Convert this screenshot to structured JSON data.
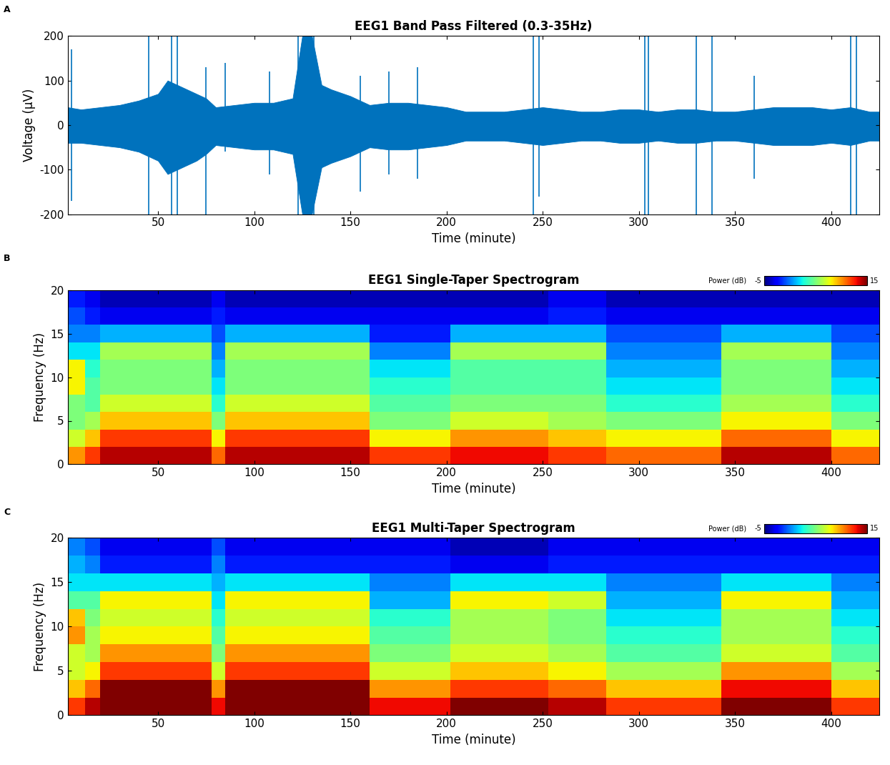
{
  "chart_data": [
    {
      "type": "area",
      "panel_label": "A",
      "title": "EEG1 Band Pass Filtered (0.3-35Hz)",
      "x_label": "Time (minute)",
      "y_label": "Voltage (µV)",
      "color": "#0072bd",
      "grid": false,
      "xlim": [
        3,
        425
      ],
      "xticks": [
        50,
        100,
        150,
        200,
        250,
        300,
        350,
        400
      ],
      "ylim": [
        -200,
        200
      ],
      "yticks": [
        -200,
        -100,
        0,
        100,
        200
      ],
      "x": [
        3,
        10,
        20,
        30,
        40,
        50,
        55,
        60,
        65,
        70,
        75,
        80,
        90,
        100,
        110,
        120,
        125,
        130,
        135,
        140,
        150,
        160,
        170,
        180,
        190,
        200,
        210,
        220,
        230,
        240,
        250,
        260,
        270,
        280,
        290,
        300,
        310,
        320,
        330,
        340,
        350,
        360,
        370,
        380,
        390,
        400,
        410,
        420,
        425
      ],
      "upper": [
        40,
        35,
        40,
        45,
        55,
        70,
        100,
        90,
        80,
        70,
        60,
        40,
        45,
        50,
        50,
        60,
        200,
        200,
        90,
        80,
        65,
        45,
        50,
        50,
        45,
        40,
        30,
        30,
        30,
        35,
        40,
        35,
        30,
        30,
        35,
        35,
        30,
        35,
        35,
        30,
        30,
        35,
        40,
        40,
        40,
        35,
        40,
        30,
        30
      ],
      "lower": [
        -40,
        -40,
        -45,
        -50,
        -60,
        -80,
        -110,
        -100,
        -90,
        -80,
        -65,
        -45,
        -50,
        -55,
        -55,
        -65,
        -200,
        -200,
        -95,
        -85,
        -70,
        -50,
        -55,
        -55,
        -50,
        -45,
        -35,
        -35,
        -35,
        -40,
        -45,
        -40,
        -35,
        -35,
        -40,
        -40,
        -35,
        -40,
        -40,
        -35,
        -35,
        -40,
        -45,
        -45,
        -45,
        -40,
        -45,
        -35,
        -35
      ],
      "spikes": [
        [
          5,
          -170,
          170
        ],
        [
          45,
          -200,
          200
        ],
        [
          57,
          -200,
          200
        ],
        [
          60,
          -200,
          200
        ],
        [
          75,
          -200,
          130
        ],
        [
          85,
          -60,
          140
        ],
        [
          108,
          -110,
          120
        ],
        [
          123,
          -200,
          200
        ],
        [
          127,
          -200,
          200
        ],
        [
          131,
          -200,
          200
        ],
        [
          155,
          -150,
          110
        ],
        [
          170,
          -110,
          120
        ],
        [
          185,
          -120,
          130
        ],
        [
          245,
          -200,
          200
        ],
        [
          248,
          -160,
          200
        ],
        [
          303,
          -200,
          200
        ],
        [
          305,
          -200,
          200
        ],
        [
          330,
          -200,
          200
        ],
        [
          338,
          -200,
          200
        ],
        [
          360,
          -120,
          110
        ],
        [
          410,
          -200,
          200
        ],
        [
          413,
          -200,
          200
        ]
      ]
    },
    {
      "type": "heatmap",
      "panel_label": "B",
      "title": "EEG1 Single-Taper Spectrogram",
      "x_label": "Time (minute)",
      "y_label": "Frequency (Hz)",
      "xlim": [
        3,
        425
      ],
      "xticks": [
        50,
        100,
        150,
        200,
        250,
        300,
        350,
        400
      ],
      "ylim": [
        0,
        20
      ],
      "yticks": [
        0,
        5,
        10,
        15,
        20
      ],
      "time_edges": [
        3,
        12,
        20,
        78,
        85,
        160,
        202,
        253,
        283,
        343,
        400,
        425
      ],
      "frequency_edges": [
        0,
        2,
        4,
        6,
        8,
        10,
        12,
        14,
        16,
        18,
        20
      ],
      "cells": [
        [
          10,
          7,
          5,
          5,
          8,
          8,
          2,
          0,
          -1,
          -2
        ],
        [
          12,
          9,
          6,
          4,
          4,
          3,
          2,
          0,
          -2,
          -3
        ],
        [
          14,
          12,
          9,
          7,
          5,
          5,
          6,
          1,
          -3,
          -4
        ],
        [
          11,
          8,
          5,
          3,
          2,
          1,
          0,
          -1,
          -2,
          -3
        ],
        [
          14,
          12,
          9,
          7,
          5,
          5,
          6,
          1,
          -3,
          -4
        ],
        [
          12,
          8,
          5,
          4,
          3,
          2,
          0,
          -2,
          -3,
          -4
        ],
        [
          13,
          10,
          7,
          5,
          4,
          4,
          6,
          1,
          -3,
          -4
        ],
        [
          12,
          9,
          6,
          5,
          4,
          4,
          6,
          1,
          -2,
          -3
        ],
        [
          11,
          8,
          5,
          3,
          2,
          1,
          0,
          -1,
          -3,
          -4
        ],
        [
          14,
          11,
          8,
          6,
          5,
          5,
          6,
          1,
          -3,
          -4
        ],
        [
          11,
          8,
          5,
          3,
          2,
          1,
          0,
          -1,
          -3,
          -4
        ]
      ],
      "colorbar": {
        "label": "Power (dB)",
        "range": [
          -5,
          15
        ],
        "ticks": [
          -5,
          15
        ]
      }
    },
    {
      "type": "heatmap",
      "panel_label": "C",
      "title": "EEG1 Multi-Taper Spectrogram",
      "x_label": "Time (minute)",
      "y_label": "Frequency (Hz)",
      "xlim": [
        3,
        425
      ],
      "xticks": [
        50,
        100,
        150,
        200,
        250,
        300,
        350,
        400
      ],
      "ylim": [
        0,
        20
      ],
      "yticks": [
        0,
        5,
        10,
        15,
        20
      ],
      "time_edges": [
        3,
        12,
        20,
        78,
        85,
        160,
        202,
        253,
        283,
        343,
        400,
        425
      ],
      "frequency_edges": [
        0,
        2,
        4,
        6,
        8,
        10,
        12,
        14,
        16,
        18,
        20
      ],
      "cells": [
        [
          12,
          9,
          7,
          7,
          10,
          9,
          4,
          2,
          1,
          0
        ],
        [
          14,
          11,
          8,
          6,
          6,
          5,
          4,
          2,
          0,
          -1
        ],
        [
          17,
          15,
          12,
          10,
          8,
          7,
          8,
          2,
          -2,
          -3
        ],
        [
          13,
          10,
          7,
          5,
          4,
          3,
          2,
          1,
          0,
          -1
        ],
        [
          17,
          15,
          12,
          10,
          8,
          7,
          8,
          2,
          -2,
          -3
        ],
        [
          13,
          10,
          7,
          5,
          4,
          3,
          1,
          0,
          -2,
          -3
        ],
        [
          15,
          12,
          9,
          7,
          6,
          6,
          8,
          2,
          -3,
          -4
        ],
        [
          14,
          11,
          8,
          6,
          5,
          5,
          7,
          2,
          -2,
          -3
        ],
        [
          12,
          9,
          6,
          4,
          3,
          2,
          1,
          0,
          -2,
          -3
        ],
        [
          16,
          13,
          10,
          7,
          6,
          6,
          8,
          2,
          -2,
          -3
        ],
        [
          12,
          9,
          6,
          4,
          3,
          2,
          1,
          0,
          -2,
          -3
        ]
      ],
      "colorbar": {
        "label": "Power (dB)",
        "range": [
          -5,
          15
        ],
        "ticks": [
          -5,
          15
        ]
      }
    }
  ]
}
